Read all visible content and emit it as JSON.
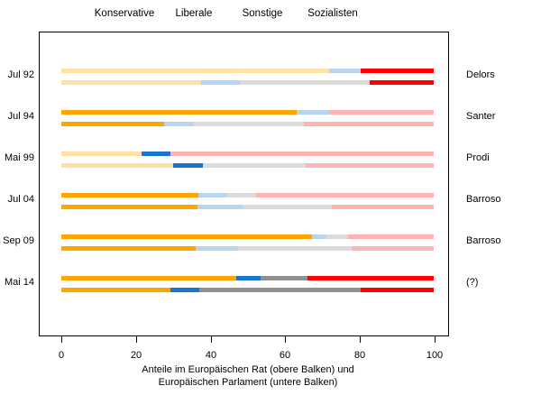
{
  "legend": [
    "Konservative",
    "Liberale",
    "Sonstige",
    "Sozialisten"
  ],
  "axis": {
    "ticks": [
      "0",
      "20",
      "40",
      "60",
      "80",
      "100"
    ],
    "title_lines": [
      "Anteile im Europäischen Rat (obere Balken) und",
      "Europäischen Parlament (untere Balken)"
    ]
  },
  "chart_data": {
    "type": "bar",
    "orientation": "horizontal-stacked-pairs",
    "xlim": [
      0,
      100
    ],
    "xticks": [
      0,
      20,
      40,
      60,
      80,
      100
    ],
    "families": [
      "Konservative",
      "Liberale",
      "Sonstige",
      "Sozialisten"
    ],
    "family_keys": [
      "konservative",
      "liberale",
      "sonstige",
      "sozialisten"
    ],
    "palette": {
      "konservative": {
        "strong": "#FFA500",
        "pale": "#FFE0A6"
      },
      "liberale": {
        "strong": "#1874CD",
        "pale": "#B9D4EF"
      },
      "sonstige": {
        "strong": "#8F8F8F",
        "pale": "#DBDBDB"
      },
      "sozialisten": {
        "strong": "#FF0000",
        "pale": "#FFB3B3"
      }
    },
    "note": "Each date has two stacked 0-100% bars: upper = Europäischer Rat, lower = Europäisches Parlament. Saturated colors mark the party family of the (prospective) Commission president named at right; pale colors are non-highlighted families.",
    "rows": [
      {
        "date": "Jul 92",
        "president": "Delors",
        "highlight": [
          "sozialisten"
        ],
        "rat": [
          71.8,
          8.7,
          0.0,
          19.5
        ],
        "parlament": [
          37.5,
          10.5,
          34.7,
          17.3
        ]
      },
      {
        "date": "Jul 94",
        "president": "Santer",
        "highlight": [
          "konservative"
        ],
        "rat": [
          63.1,
          8.9,
          0.0,
          28.0
        ],
        "parlament": [
          27.7,
          7.6,
          29.8,
          34.9
        ]
      },
      {
        "date": "Mai 99",
        "president": "Prodi",
        "highlight": [
          "liberale"
        ],
        "rat": [
          21.5,
          7.7,
          0.0,
          70.8
        ],
        "parlament": [
          30.1,
          7.9,
          27.5,
          34.5
        ]
      },
      {
        "date": "Jul 04",
        "president": "Barroso",
        "highlight": [
          "konservative"
        ],
        "rat": [
          36.9,
          7.5,
          8.0,
          47.6
        ],
        "parlament": [
          36.6,
          12.0,
          24.1,
          27.3
        ]
      },
      {
        "date": "Sep 09",
        "president": "Barroso",
        "highlight": [
          "konservative"
        ],
        "rat": [
          67.2,
          4.0,
          5.8,
          23.0
        ],
        "parlament": [
          36.0,
          11.4,
          30.5,
          22.1
        ]
      },
      {
        "date": "Mai 14",
        "president": "(?)",
        "highlight": [
          "konservative",
          "liberale",
          "sonstige",
          "sozialisten"
        ],
        "rat": [
          47.0,
          6.6,
          12.4,
          34.0
        ],
        "parlament": [
          29.3,
          7.7,
          43.3,
          19.7
        ]
      }
    ]
  }
}
